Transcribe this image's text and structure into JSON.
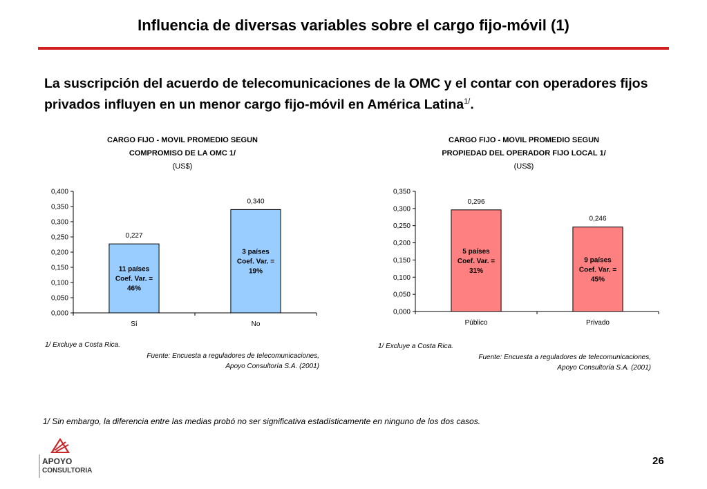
{
  "slide": {
    "title": "Influencia de diversas variables sobre el cargo fijo-móvil (1)",
    "subtitle_main": "La suscripción del acuerdo de telecomunicaciones de la OMC y el contar con operadores fijos privados influyen en un menor cargo fijo-móvil en América Latina",
    "subtitle_sup": "1/",
    "subtitle_end": ".",
    "footnote": "1/ Sin embargo, la diferencia entre las medias probó no ser significativa estadísticamente en ninguno de los dos casos.",
    "page_number": "26",
    "logo_line1": "APOYO",
    "logo_line2": "CONSULTORIA"
  },
  "colors": {
    "rule": "#d21f1f",
    "left_bar": "#99ccff",
    "right_bar": "#ff8080",
    "logo_red": "#c8262a"
  },
  "notes": {
    "left_note": "1/ Excluye a Costa Rica.",
    "left_source_1": "Fuente: Encuesta a reguladores de telecomunicaciones,",
    "left_source_2": "Apoyo Consultoría S.A. (2001)",
    "right_note": "1/ Excluye a Costa Rica.",
    "right_source_1": "Fuente: Encuesta a reguladores de telecomunicaciones,",
    "right_source_2": "Apoyo Consultoría S.A. (2001)"
  },
  "chart_data": [
    {
      "type": "bar",
      "title_lines": [
        "CARGO FIJO - MOVIL PROMEDIO SEGUN",
        "COMPROMISO DE LA OMC 1/",
        "(US$)"
      ],
      "categories": [
        "Sí",
        "No"
      ],
      "values": [
        0.227,
        0.34
      ],
      "value_labels": [
        "0,227",
        "0,340"
      ],
      "bar_annotations": [
        [
          "11 países",
          "Coef. Var. =",
          "46%"
        ],
        [
          "3 países",
          "Coef. Var. =",
          "19%"
        ]
      ],
      "ylim": [
        0,
        0.4
      ],
      "yticks": [
        0,
        0.05,
        0.1,
        0.15,
        0.2,
        0.25,
        0.3,
        0.35,
        0.4
      ],
      "ytick_labels": [
        "0,000",
        "0,050",
        "0,100",
        "0,150",
        "0,200",
        "0,250",
        "0,300",
        "0,350",
        "0,400"
      ],
      "grid": false
    },
    {
      "type": "bar",
      "title_lines": [
        "CARGO FIJO - MOVIL PROMEDIO SEGUN",
        "PROPIEDAD DEL OPERADOR FIJO LOCAL 1/",
        "(US$)"
      ],
      "categories": [
        "Público",
        "Privado"
      ],
      "values": [
        0.296,
        0.246
      ],
      "value_labels": [
        "0,296",
        "0,246"
      ],
      "bar_annotations": [
        [
          "5 países",
          "Coef. Var. =",
          "31%"
        ],
        [
          "9 países",
          "Coef. Var. =",
          "45%"
        ]
      ],
      "ylim": [
        0,
        0.35
      ],
      "yticks": [
        0,
        0.05,
        0.1,
        0.15,
        0.2,
        0.25,
        0.3,
        0.35
      ],
      "ytick_labels": [
        "0,000",
        "0,050",
        "0,100",
        "0,150",
        "0,200",
        "0,250",
        "0,300",
        "0,350"
      ],
      "grid": false
    }
  ]
}
